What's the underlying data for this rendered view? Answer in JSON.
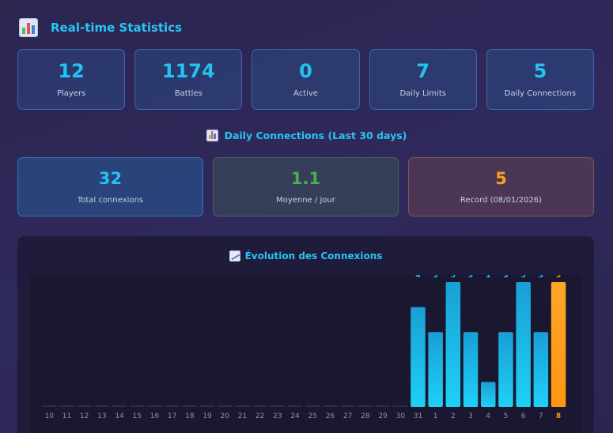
{
  "header": {
    "title": "Real-time Statistics",
    "icon": "bar-chart-icon"
  },
  "stats": [
    {
      "value": "12",
      "label": "Players"
    },
    {
      "value": "1174",
      "label": "Battles"
    },
    {
      "value": "0",
      "label": "Active"
    },
    {
      "value": "7",
      "label": "Daily Limits"
    },
    {
      "value": "5",
      "label": "Daily Connections"
    }
  ],
  "connections": {
    "title": "Daily Connections (Last 30 days)",
    "total": {
      "value": "32",
      "label": "Total connexions",
      "color": "#22c3f3"
    },
    "average": {
      "value": "1.1",
      "label": "Moyenne / jour",
      "color": "#4caf50"
    },
    "record": {
      "value": "5",
      "label": "Record (08/01/2026)",
      "color": "#ff9f1a"
    }
  },
  "evolution": {
    "title": "Évolution des Connexions",
    "icon": "line-chart-icon"
  },
  "chart_data": {
    "type": "bar",
    "title": "Évolution des Connexions",
    "categories": [
      "10",
      "11",
      "12",
      "13",
      "14",
      "15",
      "16",
      "17",
      "18",
      "19",
      "20",
      "21",
      "22",
      "23",
      "24",
      "25",
      "26",
      "27",
      "28",
      "29",
      "30",
      "31",
      "1",
      "2",
      "3",
      "4",
      "5",
      "6",
      "7",
      "8"
    ],
    "values": [
      0,
      0,
      0,
      0,
      0,
      0,
      0,
      0,
      0,
      0,
      0,
      0,
      0,
      0,
      0,
      0,
      0,
      0,
      0,
      0,
      0,
      4,
      3,
      5,
      3,
      1,
      3,
      5,
      3,
      5
    ],
    "highlight_index": 29,
    "ylim": [
      0,
      5
    ],
    "colors": {
      "normal": "#1fb8e8",
      "highlight": "#ff9f1a",
      "label_normal": "#29c4f5",
      "label_highlight": "#ff9f1a"
    }
  }
}
